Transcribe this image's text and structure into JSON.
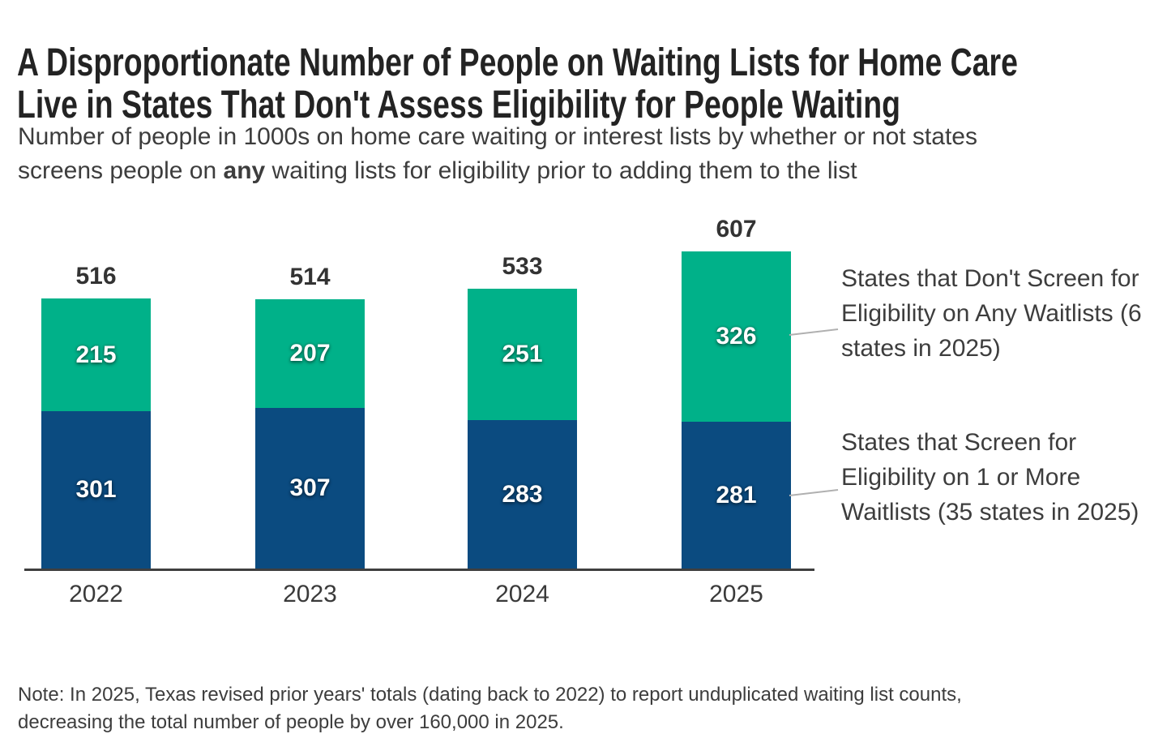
{
  "title": {
    "line1": "A Disproportionate Number of People on Waiting Lists for Home Care",
    "line2": "Live in States That Don't Assess Eligibility for People Waiting"
  },
  "subtitle": {
    "line1": "Number of people in 1000s on home care waiting or interest lists by whether or not states",
    "line2_pre": "screens people on ",
    "line2_bold": "any",
    "line2_post": " waiting lists for eligibility prior to adding them to the list"
  },
  "legend": {
    "dont_screen": "States that Don't Screen for Eligibility on Any Waitlists (6 states in 2025)",
    "screen": "States that Screen for Eligibility on 1 or More Waitlists (35 states in 2025)"
  },
  "note": {
    "line1": "Note: In 2025, Texas revised prior years' totals (dating back to 2022) to report unduplicated waiting list counts,",
    "line2": "decreasing the total number of people by over 160,000 in 2025."
  },
  "colors": {
    "green": "#00B189",
    "blue": "#0B4B80",
    "axis": "#3F3F3F",
    "leader": "#B0B0B0"
  },
  "chart_data": {
    "type": "bar",
    "stacked": true,
    "orientation": "vertical",
    "grid": false,
    "legend_position": "right",
    "xlabel": "",
    "ylabel": "Number of people in 1000s",
    "categories": [
      "2022",
      "2023",
      "2024",
      "2025"
    ],
    "series": [
      {
        "name": "States that Screen for Eligibility on 1 or More Waitlists (35 states in 2025)",
        "color_key": "blue",
        "values": [
          301,
          307,
          283,
          281
        ]
      },
      {
        "name": "States that Don't Screen for Eligibility on Any Waitlists (6 states in 2025)",
        "color_key": "green",
        "values": [
          215,
          207,
          251,
          326
        ]
      }
    ],
    "totals": [
      516,
      514,
      533,
      607
    ]
  }
}
